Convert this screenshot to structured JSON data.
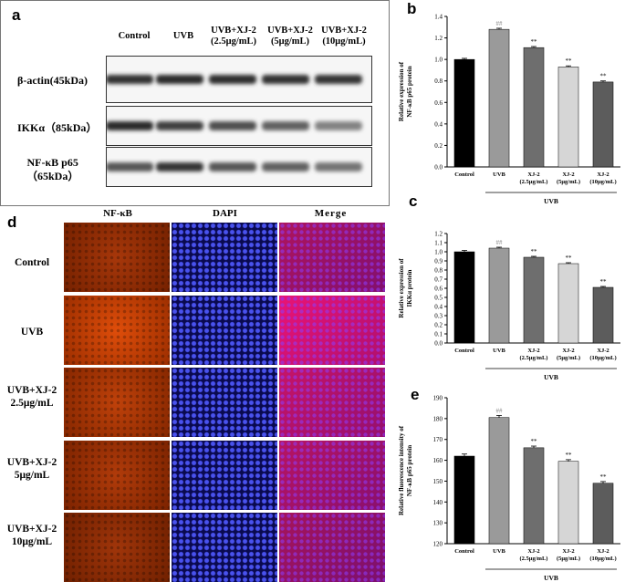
{
  "panel_a": {
    "letter": "a",
    "columns": [
      "Control",
      "UVB",
      "UVB+XJ-2\n(2.5μg/mL)",
      "UVB+XJ-2\n(5μg/mL)",
      "UVB+XJ-2\n(10μg/mL)"
    ],
    "rows": [
      {
        "label": "β-actin(45kDa)",
        "intensity": [
          0.92,
          0.95,
          0.93,
          0.92,
          0.9
        ]
      },
      {
        "label": "IKKα（85kDa）",
        "intensity": [
          0.95,
          0.85,
          0.78,
          0.7,
          0.55
        ]
      },
      {
        "label": "NF-κB p65\n（65kDa）",
        "intensity": [
          0.75,
          0.9,
          0.75,
          0.7,
          0.62
        ]
      }
    ]
  },
  "panel_d": {
    "letter": "d",
    "channels": [
      "NF-κB",
      "DAPI",
      "Merge"
    ],
    "rows": [
      "Control",
      "UVB",
      "UVB+XJ-2\n2.5μg/mL",
      "UVB+XJ-2\n5μg/mL",
      "UVB+XJ-2\n10μg/mL"
    ],
    "nfkb_brightness": [
      0.55,
      0.95,
      0.72,
      0.62,
      0.5
    ]
  },
  "chart_data": [
    {
      "panel": "b",
      "type": "bar",
      "categories": [
        "Control",
        "UVB",
        "XJ-2\n(2.5μg/mL)",
        "XJ-2\n(5μg/mL)",
        "XJ-2\n(10μg/mL)"
      ],
      "values": [
        1.0,
        1.28,
        1.11,
        0.93,
        0.79
      ],
      "errors": [
        0.01,
        0.01,
        0.01,
        0.01,
        0.01
      ],
      "annotations": [
        "",
        "##",
        "**",
        "**",
        "**"
      ],
      "colors": [
        "#000000",
        "#9a9a9a",
        "#6e6e6e",
        "#d6d6d6",
        "#5c5c5c"
      ],
      "ylabel": "Relative expression of\nNF-κB p65 protein",
      "ylim": [
        0.0,
        1.4
      ],
      "yticks": [
        "0.0",
        "0.2",
        "0.4",
        "0.6",
        "0.8",
        "1.0",
        "1.2",
        "1.4"
      ],
      "group_label": "UVB"
    },
    {
      "panel": "c",
      "type": "bar",
      "categories": [
        "Control",
        "UVB",
        "XJ-2\n(2.5μg/mL)",
        "XJ-2\n(5μg/mL)",
        "XJ-2\n(10μg/mL)"
      ],
      "values": [
        1.0,
        1.04,
        0.94,
        0.87,
        0.61
      ],
      "errors": [
        0.015,
        0.01,
        0.01,
        0.01,
        0.01
      ],
      "annotations": [
        "",
        "##",
        "**",
        "**",
        "**"
      ],
      "colors": [
        "#000000",
        "#9a9a9a",
        "#6e6e6e",
        "#d6d6d6",
        "#5c5c5c"
      ],
      "ylabel": "Relative expression of\nIKKα protein",
      "ylim": [
        0.0,
        1.2
      ],
      "yticks": [
        "0.0",
        "0.1",
        "0.2",
        "0.3",
        "0.4",
        "0.5",
        "0.6",
        "0.7",
        "0.8",
        "0.9",
        "1.0",
        "1.1",
        "1.2"
      ],
      "group_label": "UVB"
    },
    {
      "panel": "e",
      "type": "bar",
      "categories": [
        "Control",
        "UVB",
        "XJ-2\n(2.5μg/mL)",
        "XJ-2\n(5μg/mL)",
        "XJ-2\n(10μg/mL)"
      ],
      "values": [
        162,
        180.5,
        166,
        159.5,
        149
      ],
      "errors": [
        1.0,
        1.0,
        0.8,
        0.8,
        0.8
      ],
      "annotations": [
        "",
        "##",
        "**",
        "**",
        "**"
      ],
      "colors": [
        "#000000",
        "#9a9a9a",
        "#6e6e6e",
        "#d6d6d6",
        "#5c5c5c"
      ],
      "ylabel": "Relative fluorescence intensity of\nNF-κB p65 protein",
      "ylim": [
        120,
        190
      ],
      "yticks": [
        "120",
        "130",
        "140",
        "150",
        "160",
        "170",
        "180",
        "190"
      ],
      "group_label": "UVB"
    }
  ]
}
